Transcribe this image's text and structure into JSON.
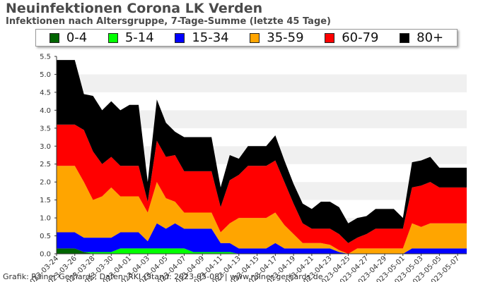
{
  "chart_data": {
    "type": "area",
    "stacked": true,
    "title": "Neuinfektionen Corona LK Verden",
    "subtitle": "Infektionen nach Altersgruppe, 7-Tage-Summe (letzte 45 Tage)",
    "xlabel": "",
    "ylabel": "",
    "ylim": [
      0,
      5.5
    ],
    "yticks": [
      "0.0",
      "0.5",
      "1.0",
      "1.5",
      "2.0",
      "2.5",
      "3.0",
      "3.5",
      "4.0",
      "4.5",
      "5.0",
      "5.5"
    ],
    "grid": "horizontal bands",
    "legend_position": "top",
    "x": [
      "2023-03-24",
      "2023-03-25",
      "2023-03-26",
      "2023-03-27",
      "2023-03-28",
      "2023-03-29",
      "2023-03-30",
      "2023-03-31",
      "2023-04-01",
      "2023-04-02",
      "2023-04-03",
      "2023-04-04",
      "2023-04-05",
      "2023-04-06",
      "2023-04-07",
      "2023-04-08",
      "2023-04-09",
      "2023-04-10",
      "2023-04-11",
      "2023-04-12",
      "2023-04-13",
      "2023-04-14",
      "2023-04-15",
      "2023-04-16",
      "2023-04-17",
      "2023-04-18",
      "2023-04-19",
      "2023-04-20",
      "2023-04-21",
      "2023-04-22",
      "2023-04-23",
      "2023-04-24",
      "2023-04-25",
      "2023-04-26",
      "2023-04-27",
      "2023-04-28",
      "2023-04-29",
      "2023-04-30",
      "2023-05-01",
      "2023-05-02",
      "2023-05-03",
      "2023-05-04",
      "2023-05-05",
      "2023-05-06",
      "2023-05-07",
      "2023-05-08"
    ],
    "xtick_labels": [
      "2023-03-24",
      "2023-03-26",
      "2023-03-28",
      "2023-03-30",
      "2023-04-01",
      "2023-04-03",
      "2023-04-05",
      "2023-04-07",
      "2023-04-09",
      "2023-04-11",
      "2023-04-13",
      "2023-04-15",
      "2023-04-17",
      "2023-04-19",
      "2023-04-21",
      "2023-04-23",
      "2023-04-25",
      "2023-04-27",
      "2023-04-29",
      "2023-05-01",
      "2023-05-03",
      "2023-05-05",
      "2023-05-07"
    ],
    "series": [
      {
        "name": "0-4",
        "color": "#006400",
        "values": [
          0.15,
          0.15,
          0.15,
          0.05,
          0,
          0,
          0,
          0,
          0,
          0,
          0,
          0,
          0,
          0,
          0,
          0,
          0,
          0,
          0,
          0,
          0,
          0,
          0,
          0,
          0,
          0,
          0,
          0,
          0,
          0,
          0,
          0,
          0,
          0,
          0,
          0,
          0,
          0,
          0,
          0,
          0,
          0,
          0,
          0,
          0,
          0
        ]
      },
      {
        "name": "5-14",
        "color": "#00ff00",
        "values": [
          0,
          0,
          0,
          0,
          0.05,
          0.05,
          0.05,
          0.15,
          0.15,
          0.15,
          0.15,
          0.15,
          0.15,
          0.15,
          0.15,
          0.05,
          0.05,
          0.05,
          0.05,
          0.05,
          0,
          0,
          0,
          0,
          0,
          0,
          0,
          0,
          0,
          0,
          0,
          0,
          0,
          0,
          0,
          0,
          0,
          0,
          0,
          0,
          0,
          0,
          0,
          0,
          0,
          0
        ]
      },
      {
        "name": "15-34",
        "color": "#0000ff",
        "values": [
          0.45,
          0.45,
          0.45,
          0.4,
          0.4,
          0.4,
          0.4,
          0.45,
          0.45,
          0.45,
          0.2,
          0.7,
          0.55,
          0.7,
          0.55,
          0.65,
          0.65,
          0.65,
          0.25,
          0.25,
          0.15,
          0.15,
          0.15,
          0.15,
          0.3,
          0.15,
          0.15,
          0.15,
          0.15,
          0.15,
          0.15,
          0.05,
          0,
          0,
          0,
          0,
          0,
          0,
          0,
          0.15,
          0.15,
          0.15,
          0.15,
          0.15,
          0.15,
          0.15
        ]
      },
      {
        "name": "35-59",
        "color": "#ffa500",
        "values": [
          1.85,
          1.85,
          1.85,
          1.55,
          1.05,
          1.15,
          1.4,
          1.0,
          1.0,
          1.0,
          0.8,
          1.15,
          0.85,
          0.6,
          0.45,
          0.45,
          0.45,
          0.45,
          0.3,
          0.55,
          0.85,
          0.85,
          0.85,
          0.85,
          0.85,
          0.65,
          0.4,
          0.15,
          0.15,
          0.15,
          0.1,
          0.05,
          0,
          0.15,
          0.15,
          0.15,
          0.15,
          0.15,
          0.15,
          0.7,
          0.6,
          0.7,
          0.7,
          0.7,
          0.7,
          0.7
        ]
      },
      {
        "name": "60-79",
        "color": "#ff0000",
        "values": [
          1.15,
          1.15,
          1.15,
          1.45,
          1.35,
          0.9,
          0.85,
          0.85,
          0.85,
          0.85,
          0.3,
          1.15,
          1.15,
          1.3,
          1.15,
          1.15,
          1.15,
          1.15,
          0.7,
          1.2,
          1.2,
          1.45,
          1.45,
          1.45,
          1.45,
          1.2,
          0.85,
          0.55,
          0.4,
          0.4,
          0.45,
          0.45,
          0.3,
          0.3,
          0.4,
          0.55,
          0.55,
          0.55,
          0.55,
          1.0,
          1.15,
          1.15,
          1.0,
          1.0,
          1.0,
          1.0
        ]
      },
      {
        "name": "80+",
        "color": "#000000",
        "values": [
          1.8,
          1.8,
          1.8,
          1.0,
          1.55,
          1.5,
          1.55,
          1.55,
          1.7,
          1.7,
          0.55,
          1.15,
          0.95,
          0.65,
          0.95,
          0.95,
          0.95,
          0.95,
          0.55,
          0.7,
          0.45,
          0.55,
          0.55,
          0.55,
          0.7,
          0.6,
          0.55,
          0.55,
          0.55,
          0.75,
          0.75,
          0.75,
          0.55,
          0.55,
          0.5,
          0.55,
          0.55,
          0.55,
          0.3,
          0.7,
          0.7,
          0.7,
          0.55,
          0.55,
          0.55,
          0.55
        ]
      }
    ]
  },
  "legend": {
    "items": [
      {
        "label": "0-4",
        "color": "#006400"
      },
      {
        "label": "5-14",
        "color": "#00ff00"
      },
      {
        "label": "15-34",
        "color": "#0000ff"
      },
      {
        "label": "35-59",
        "color": "#ffa500"
      },
      {
        "label": "60-79",
        "color": "#ff0000"
      },
      {
        "label": "80+",
        "color": "#000000"
      }
    ]
  },
  "footer": "Grafik: Rainer Gerhards, Daten: RKI (Stand: 2023-05-08) | www.rainer-gerhards.de"
}
